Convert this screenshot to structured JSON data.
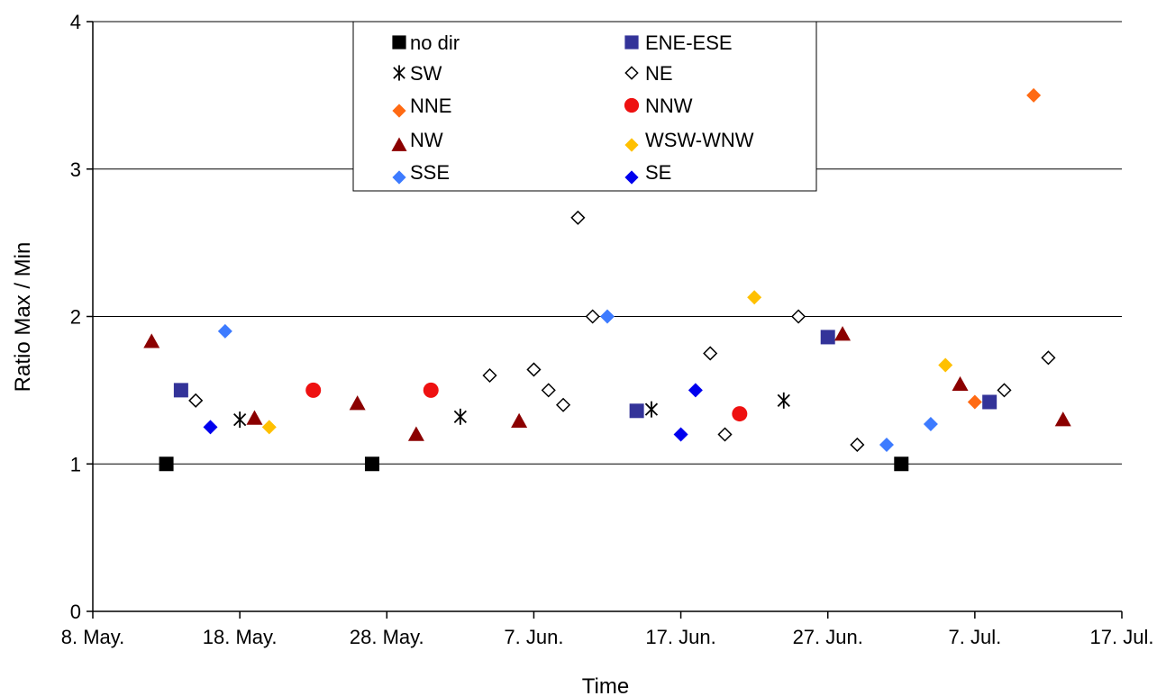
{
  "chart_data": {
    "type": "scatter",
    "title": "",
    "xlabel": "Time",
    "ylabel": "Ratio Max / Min",
    "xlim": [
      "2024-05-08",
      "2024-07-17"
    ],
    "ylim": [
      0,
      4
    ],
    "grid": "horizontal",
    "legend_position": "top-center",
    "x_ticks": [
      {
        "date": "2024-05-08",
        "label": "8. May."
      },
      {
        "date": "2024-05-18",
        "label": "18. May."
      },
      {
        "date": "2024-05-28",
        "label": "28. May."
      },
      {
        "date": "2024-06-07",
        "label": "7. Jun."
      },
      {
        "date": "2024-06-17",
        "label": "17. Jun."
      },
      {
        "date": "2024-06-27",
        "label": "27. Jun."
      },
      {
        "date": "2024-07-07",
        "label": "7. Jul."
      },
      {
        "date": "2024-07-17",
        "label": "17. Jul."
      }
    ],
    "y_ticks": [
      {
        "value": 0,
        "label": "0"
      },
      {
        "value": 1,
        "label": "1"
      },
      {
        "value": 2,
        "label": "2"
      },
      {
        "value": 3,
        "label": "3"
      },
      {
        "value": 4,
        "label": "4"
      }
    ],
    "series": [
      {
        "name": "no dir",
        "marker": "square",
        "color": "#000000",
        "points": [
          {
            "x": "2024-05-13",
            "y": 1.0
          },
          {
            "x": "2024-05-27",
            "y": 1.0
          },
          {
            "x": "2024-07-02",
            "y": 1.0
          }
        ]
      },
      {
        "name": "ENE-ESE",
        "marker": "square",
        "color": "#333399",
        "points": [
          {
            "x": "2024-05-14",
            "y": 1.5
          },
          {
            "x": "2024-06-14",
            "y": 1.36
          },
          {
            "x": "2024-06-27",
            "y": 1.86
          },
          {
            "x": "2024-07-08",
            "y": 1.42
          }
        ]
      },
      {
        "name": "SW",
        "marker": "asterisk",
        "color": "#000000",
        "points": [
          {
            "x": "2024-05-18",
            "y": 1.3
          },
          {
            "x": "2024-06-02",
            "y": 1.32
          },
          {
            "x": "2024-06-15",
            "y": 1.37
          },
          {
            "x": "2024-06-24",
            "y": 1.43
          }
        ]
      },
      {
        "name": "NE",
        "marker": "diamond-open",
        "color": "#000000",
        "points": [
          {
            "x": "2024-05-15",
            "y": 1.43
          },
          {
            "x": "2024-06-04",
            "y": 1.6
          },
          {
            "x": "2024-06-07",
            "y": 1.64
          },
          {
            "x": "2024-06-08",
            "y": 1.5
          },
          {
            "x": "2024-06-09",
            "y": 1.4
          },
          {
            "x": "2024-06-10",
            "y": 2.67
          },
          {
            "x": "2024-06-11",
            "y": 2.0
          },
          {
            "x": "2024-06-19",
            "y": 1.75
          },
          {
            "x": "2024-06-20",
            "y": 1.2
          },
          {
            "x": "2024-06-25",
            "y": 2.0
          },
          {
            "x": "2024-06-29",
            "y": 1.13
          },
          {
            "x": "2024-07-09",
            "y": 1.5
          },
          {
            "x": "2024-07-12",
            "y": 1.72
          }
        ]
      },
      {
        "name": "NNE",
        "marker": "diamond",
        "color": "#ff6a13",
        "points": [
          {
            "x": "2024-07-07",
            "y": 1.42
          },
          {
            "x": "2024-07-11",
            "y": 3.5
          }
        ]
      },
      {
        "name": "NNW",
        "marker": "circle",
        "color": "#ee1111",
        "points": [
          {
            "x": "2024-05-23",
            "y": 1.5
          },
          {
            "x": "2024-05-31",
            "y": 1.5
          },
          {
            "x": "2024-06-21",
            "y": 1.34
          }
        ]
      },
      {
        "name": "NW",
        "marker": "triangle",
        "color": "#8b0000",
        "points": [
          {
            "x": "2024-05-12",
            "y": 1.83
          },
          {
            "x": "2024-05-19",
            "y": 1.31
          },
          {
            "x": "2024-05-26",
            "y": 1.41
          },
          {
            "x": "2024-05-30",
            "y": 1.2
          },
          {
            "x": "2024-06-06",
            "y": 1.29
          },
          {
            "x": "2024-06-28",
            "y": 1.88
          },
          {
            "x": "2024-07-06",
            "y": 1.54
          },
          {
            "x": "2024-07-13",
            "y": 1.3
          }
        ]
      },
      {
        "name": "WSW-WNW",
        "marker": "diamond",
        "color": "#ffc000",
        "points": [
          {
            "x": "2024-05-20",
            "y": 1.25
          },
          {
            "x": "2024-06-22",
            "y": 2.13
          },
          {
            "x": "2024-07-05",
            "y": 1.67
          }
        ]
      },
      {
        "name": "SSE",
        "marker": "diamond",
        "color": "#3d7bff",
        "points": [
          {
            "x": "2024-05-17",
            "y": 1.9
          },
          {
            "x": "2024-06-12",
            "y": 2.0
          },
          {
            "x": "2024-07-01",
            "y": 1.13
          },
          {
            "x": "2024-07-04",
            "y": 1.27
          }
        ]
      },
      {
        "name": "SE",
        "marker": "diamond",
        "color": "#0000ee",
        "points": [
          {
            "x": "2024-05-16",
            "y": 1.25
          },
          {
            "x": "2024-06-17",
            "y": 1.2
          },
          {
            "x": "2024-06-18",
            "y": 1.5
          }
        ]
      }
    ]
  }
}
